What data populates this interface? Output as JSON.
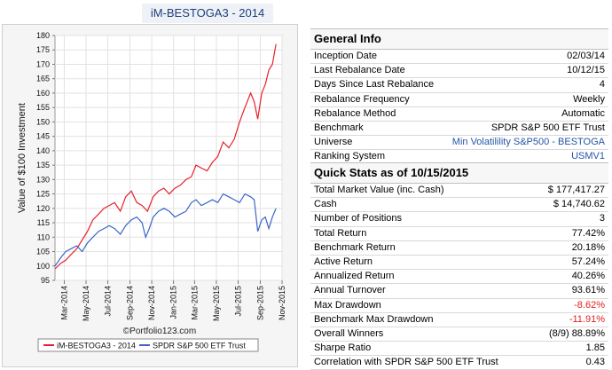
{
  "chart_title": "iM-BESTOGA3 - 2014",
  "general_info": {
    "heading": "General Info",
    "rows": [
      {
        "label": "Inception Date",
        "value": "02/03/14"
      },
      {
        "label": "Last Rebalance Date",
        "value": "10/12/15"
      },
      {
        "label": "Days Since Last Rebalance",
        "value": "4"
      },
      {
        "label": "Rebalance Frequency",
        "value": "Weekly"
      },
      {
        "label": "Rebalance Method",
        "value": "Automatic"
      },
      {
        "label": "Benchmark",
        "value": "SPDR S&P 500 ETF Trust"
      },
      {
        "label": "Universe",
        "value": "Min Volatilility S&P500 - BESTOGA",
        "color": "#2456a6"
      },
      {
        "label": "Ranking System",
        "value": "USMV1",
        "color": "#2456a6"
      }
    ]
  },
  "quick_stats": {
    "heading": "Quick Stats as of 10/15/2015",
    "rows": [
      {
        "label": "Total Market Value (inc. Cash)",
        "value": "$ 177,417.27"
      },
      {
        "label": "Cash",
        "value": "$ 14,740.62"
      },
      {
        "label": "Number of Positions",
        "value": "3"
      },
      {
        "label": "Total Return",
        "value": "77.42%"
      },
      {
        "label": "Benchmark Return",
        "value": "20.18%"
      },
      {
        "label": "Active Return",
        "value": "57.24%"
      },
      {
        "label": "Annualized Return",
        "value": "40.26%"
      },
      {
        "label": "Annual Turnover",
        "value": "93.61%"
      },
      {
        "label": "Max Drawdown",
        "value": "-8.62%",
        "color": "#e02020"
      },
      {
        "label": "Benchmark Max Drawdown",
        "value": "-11.91%",
        "color": "#e02020"
      },
      {
        "label": "Overall Winners",
        "value": "(8/9) 88.89%"
      },
      {
        "label": "Sharpe Ratio",
        "value": "1.85"
      },
      {
        "label": "Correlation with SPDR S&P 500 ETF Trust",
        "value": "0.43"
      }
    ]
  },
  "chart_data": {
    "type": "line",
    "ylabel": "Value of $100 Investment",
    "ylim": [
      95,
      180
    ],
    "yticks": [
      95,
      100,
      105,
      110,
      115,
      120,
      125,
      130,
      135,
      140,
      145,
      150,
      155,
      160,
      165,
      170,
      175,
      180
    ],
    "xlim": [
      "2014-02-03",
      "2015-11-01"
    ],
    "xticks": [
      "Mar-2014",
      "May-2014",
      "Jul-2014",
      "Sep-2014",
      "Nov-2014",
      "Jan-2015",
      "Mar-2015",
      "May-2015",
      "Jul-2015",
      "Sep-2015",
      "Nov-2015"
    ],
    "xtick_dates": [
      "2014-03-01",
      "2014-05-01",
      "2014-07-01",
      "2014-09-01",
      "2014-11-01",
      "2015-01-01",
      "2015-03-01",
      "2015-05-01",
      "2015-07-01",
      "2015-09-01",
      "2015-11-01"
    ],
    "grid": true,
    "watermark": "©Portfolio123.com",
    "legend_position": "bottom",
    "series": [
      {
        "name": "iM-BESTOGA3 - 2014",
        "color": "#e8202a",
        "points": [
          [
            "2014-02-03",
            99
          ],
          [
            "2014-02-20",
            101
          ],
          [
            "2014-03-05",
            102
          ],
          [
            "2014-03-20",
            104
          ],
          [
            "2014-04-05",
            106
          ],
          [
            "2014-04-20",
            109
          ],
          [
            "2014-05-05",
            112
          ],
          [
            "2014-05-20",
            116
          ],
          [
            "2014-06-05",
            118
          ],
          [
            "2014-06-20",
            120
          ],
          [
            "2014-07-05",
            121
          ],
          [
            "2014-07-20",
            122
          ],
          [
            "2014-08-05",
            119
          ],
          [
            "2014-08-20",
            124
          ],
          [
            "2014-09-05",
            126
          ],
          [
            "2014-09-20",
            122
          ],
          [
            "2014-10-05",
            121
          ],
          [
            "2014-10-20",
            119
          ],
          [
            "2014-11-05",
            124
          ],
          [
            "2014-11-20",
            126
          ],
          [
            "2014-12-05",
            127
          ],
          [
            "2014-12-20",
            125
          ],
          [
            "2015-01-05",
            127
          ],
          [
            "2015-01-20",
            128
          ],
          [
            "2015-02-05",
            130
          ],
          [
            "2015-02-20",
            131
          ],
          [
            "2015-03-05",
            135
          ],
          [
            "2015-03-20",
            134
          ],
          [
            "2015-04-05",
            133
          ],
          [
            "2015-04-20",
            136
          ],
          [
            "2015-05-05",
            138
          ],
          [
            "2015-05-20",
            143
          ],
          [
            "2015-06-05",
            141
          ],
          [
            "2015-06-20",
            144
          ],
          [
            "2015-07-05",
            150
          ],
          [
            "2015-07-20",
            155
          ],
          [
            "2015-08-05",
            160
          ],
          [
            "2015-08-15",
            157
          ],
          [
            "2015-08-25",
            151
          ],
          [
            "2015-09-05",
            160
          ],
          [
            "2015-09-15",
            163
          ],
          [
            "2015-09-25",
            168
          ],
          [
            "2015-10-05",
            170
          ],
          [
            "2015-10-15",
            177
          ]
        ]
      },
      {
        "name": "SPDR S&P 500 ETF Trust",
        "color": "#3a66c8",
        "points": [
          [
            "2014-02-03",
            100
          ],
          [
            "2014-02-20",
            103
          ],
          [
            "2014-03-05",
            105
          ],
          [
            "2014-03-20",
            106
          ],
          [
            "2014-04-05",
            107
          ],
          [
            "2014-04-20",
            105
          ],
          [
            "2014-05-05",
            108
          ],
          [
            "2014-05-20",
            110
          ],
          [
            "2014-06-05",
            112
          ],
          [
            "2014-06-20",
            113
          ],
          [
            "2014-07-05",
            114
          ],
          [
            "2014-07-20",
            113
          ],
          [
            "2014-08-05",
            111
          ],
          [
            "2014-08-20",
            114
          ],
          [
            "2014-09-05",
            116
          ],
          [
            "2014-09-20",
            117
          ],
          [
            "2014-10-05",
            115
          ],
          [
            "2014-10-15",
            110
          ],
          [
            "2014-10-25",
            113
          ],
          [
            "2014-11-05",
            117
          ],
          [
            "2014-11-20",
            119
          ],
          [
            "2014-12-05",
            120
          ],
          [
            "2014-12-20",
            119
          ],
          [
            "2015-01-05",
            117
          ],
          [
            "2015-01-20",
            118
          ],
          [
            "2015-02-05",
            119
          ],
          [
            "2015-02-20",
            122
          ],
          [
            "2015-03-05",
            123
          ],
          [
            "2015-03-20",
            121
          ],
          [
            "2015-04-05",
            122
          ],
          [
            "2015-04-20",
            123
          ],
          [
            "2015-05-05",
            122
          ],
          [
            "2015-05-20",
            125
          ],
          [
            "2015-06-05",
            124
          ],
          [
            "2015-06-20",
            123
          ],
          [
            "2015-07-05",
            122
          ],
          [
            "2015-07-20",
            125
          ],
          [
            "2015-08-05",
            124
          ],
          [
            "2015-08-15",
            123
          ],
          [
            "2015-08-25",
            112
          ],
          [
            "2015-09-05",
            116
          ],
          [
            "2015-09-15",
            117
          ],
          [
            "2015-09-25",
            113
          ],
          [
            "2015-10-05",
            117
          ],
          [
            "2015-10-15",
            120
          ]
        ]
      }
    ]
  }
}
